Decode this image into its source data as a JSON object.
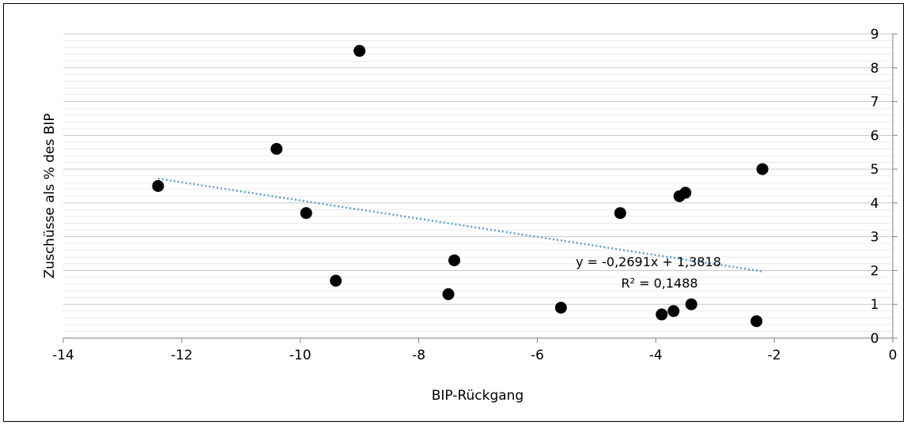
{
  "chart_data": {
    "type": "scatter",
    "xlabel": "BIP-Rückgang",
    "ylabel": "Zuschüsse als % des BIP",
    "xlim": [
      -14,
      0
    ],
    "ylim": [
      0,
      9
    ],
    "x_ticks": [
      "-14",
      "-12",
      "-10",
      "-8",
      "-6",
      "-4",
      "-2",
      "0"
    ],
    "y_ticks": [
      "0",
      "1",
      "2",
      "3",
      "4",
      "5",
      "6",
      "7",
      "8",
      "9"
    ],
    "y_axis_position": "right",
    "grid": "horizontal-major-and-minor",
    "marker_color": "#000000",
    "trendline_color": "#5b9bd5",
    "points": [
      {
        "x": -12.4,
        "y": 4.5
      },
      {
        "x": -10.4,
        "y": 5.6
      },
      {
        "x": -9.9,
        "y": 3.7
      },
      {
        "x": -9.4,
        "y": 1.7
      },
      {
        "x": -9.0,
        "y": 8.5
      },
      {
        "x": -7.5,
        "y": 1.3
      },
      {
        "x": -7.4,
        "y": 2.3
      },
      {
        "x": -5.6,
        "y": 0.9
      },
      {
        "x": -4.6,
        "y": 3.7
      },
      {
        "x": -3.9,
        "y": 0.7
      },
      {
        "x": -3.7,
        "y": 0.8
      },
      {
        "x": -3.6,
        "y": 4.2
      },
      {
        "x": -3.5,
        "y": 4.3
      },
      {
        "x": -3.4,
        "y": 1.0
      },
      {
        "x": -2.3,
        "y": 0.5
      },
      {
        "x": -2.2,
        "y": 5.0
      }
    ],
    "trendline": {
      "slope": -0.2691,
      "intercept": 1.3818,
      "x_range": [
        -12.4,
        -2.2
      ],
      "equation": "y = -0,2691x + 1,3818",
      "r_squared": "R² = 0,1488"
    }
  }
}
